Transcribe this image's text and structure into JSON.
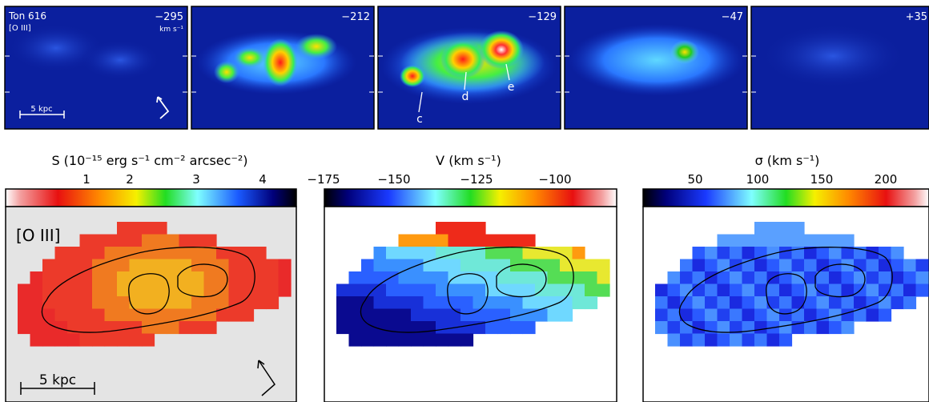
{
  "top_row": {
    "object_name": "Ton 616",
    "line_label": "[O III]",
    "velocity_unit": "km s⁻¹",
    "scale_label": "5 kpc",
    "panels": [
      {
        "velocity": "−295"
      },
      {
        "velocity": "−212"
      },
      {
        "velocity": "−129"
      },
      {
        "velocity": "−47"
      },
      {
        "velocity": "+35"
      }
    ],
    "component_labels": [
      "c",
      "d",
      "e"
    ]
  },
  "maps": {
    "surface_brightness": {
      "title": "S (10⁻¹⁵ erg s⁻¹ cm⁻² arcsec⁻²)",
      "ticks": [
        "1",
        "2",
        "3",
        "4"
      ],
      "panel_label": "[O III]",
      "scale_label": "5 kpc"
    },
    "velocity": {
      "title": "V (km s⁻¹)",
      "ticks": [
        "−175",
        "−150",
        "−125",
        "−100"
      ]
    },
    "dispersion": {
      "title": "σ (km s⁻¹)",
      "ticks": [
        "50",
        "100",
        "150",
        "200"
      ]
    }
  },
  "colors": {
    "map_background_s": "#e4e4e4",
    "contour": "#000000",
    "channel_background": "#0b1f9e"
  }
}
